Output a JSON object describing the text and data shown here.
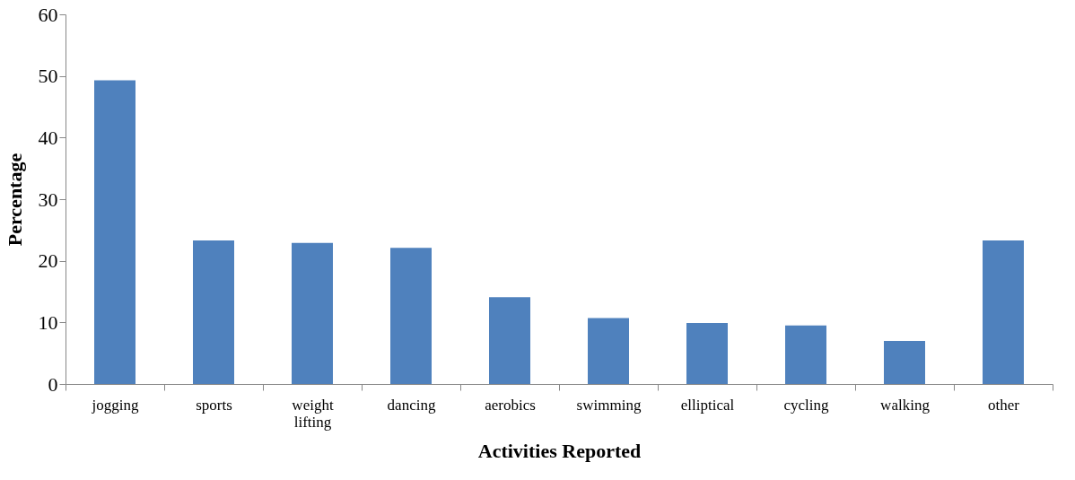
{
  "chart_data": {
    "type": "bar",
    "xlabel": "Activities Reported",
    "ylabel": "Percentage",
    "categories": [
      "jogging",
      "sports",
      "weight lifting",
      "dancing",
      "aerobics",
      "swimming",
      "elliptical",
      "cycling",
      "walking",
      "other"
    ],
    "values": [
      49.3,
      23.3,
      22.9,
      22.1,
      14.1,
      10.7,
      9.9,
      9.5,
      7.0,
      23.3
    ],
    "color": "#4f81bd",
    "ylim": [
      0,
      60
    ],
    "yticks": [
      0,
      10,
      20,
      30,
      40,
      50,
      60
    ],
    "grid": false
  }
}
